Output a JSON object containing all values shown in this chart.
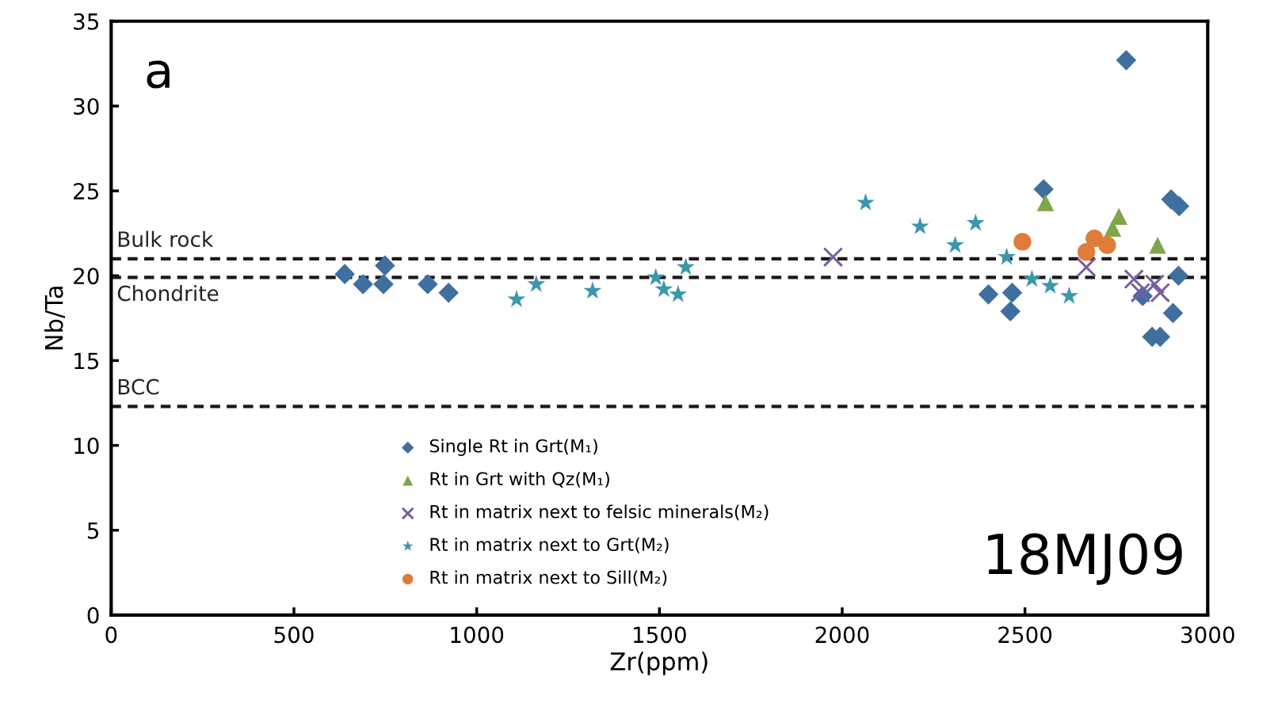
{
  "chart_data": {
    "type": "scatter",
    "xlabel": "Zr(ppm)",
    "ylabel": "Nb/Ta",
    "xlim": [
      0,
      3000
    ],
    "xticks": [
      0,
      500,
      1000,
      1500,
      2000,
      2500,
      3000
    ],
    "ylim": [
      0,
      35
    ],
    "yticks": [
      0,
      5,
      10,
      15,
      20,
      25,
      30,
      35
    ],
    "grid": false,
    "legend": "bottom",
    "annotations": [
      "a",
      "18MJ09"
    ],
    "ref_lines": [
      {
        "axis": "y",
        "value": 21.0,
        "label": "Bulk rock",
        "color": "#1a1a1a",
        "line_style": "dashed"
      },
      {
        "axis": "y",
        "value": 19.9,
        "label": "Chondrite",
        "color": "#1a1a1a",
        "line_style": "dashed"
      },
      {
        "axis": "y",
        "value": 12.3,
        "label": "BCC",
        "color": "#1a1a1a",
        "line_style": "dashed"
      }
    ],
    "series": [
      {
        "name": "Single Rt in Grt(M₁)",
        "color": "#3f6f9f",
        "marker": "diamond",
        "x": [
          639,
          689,
          749,
          745,
          866,
          923,
          2400,
          2465,
          2460,
          2551,
          2777,
          2900,
          2922,
          2920,
          2822,
          2905,
          2848,
          2870
        ],
        "values": [
          20.1,
          19.5,
          20.6,
          19.5,
          19.5,
          19.0,
          18.9,
          19.0,
          17.9,
          25.1,
          32.7,
          24.5,
          24.1,
          20.0,
          18.8,
          17.8,
          16.4,
          16.4
        ]
      },
      {
        "name": "Rt in Grt with Qz(M₁)",
        "color": "#7fa64a",
        "marker": "triangle",
        "x": [
          2556,
          2757,
          2740,
          2863
        ],
        "values": [
          24.3,
          23.5,
          22.8,
          21.8
        ]
      },
      {
        "name": "Rt in matrix next to felsic minerals(M₂)",
        "color": "#7a5fa0",
        "marker": "cross",
        "x": [
          1975,
          2668,
          2798,
          2816,
          2855,
          2870
        ],
        "values": [
          21.1,
          20.5,
          19.8,
          19.0,
          19.5,
          19.0
        ]
      },
      {
        "name": "Rt in matrix next to Grt(M₂)",
        "color": "#3b97ad",
        "marker": "star",
        "x": [
          1109,
          1163,
          1317,
          1490,
          1512,
          1551,
          1572,
          2064,
          2213,
          2309,
          2365,
          2450,
          2519,
          2569,
          2621
        ],
        "values": [
          18.6,
          19.5,
          19.1,
          19.9,
          19.2,
          18.9,
          20.5,
          24.3,
          22.9,
          21.8,
          23.1,
          21.1,
          19.8,
          19.4,
          18.8
        ]
      },
      {
        "name": "Rt in matrix next to Sill(M₂)",
        "color": "#e07b39",
        "marker": "circle",
        "x": [
          2493,
          2668,
          2690,
          2725,
          2668
        ],
        "values": [
          22.0,
          null,
          22.2,
          21.8,
          21.4
        ]
      }
    ]
  }
}
